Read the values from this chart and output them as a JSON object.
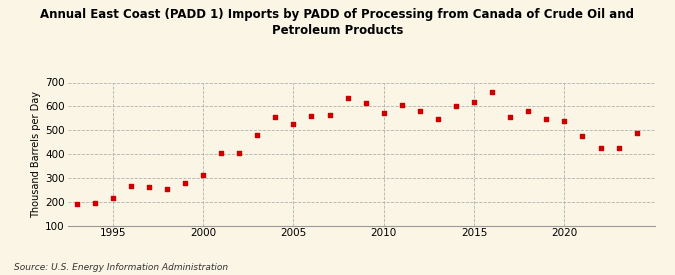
{
  "title": "Annual East Coast (PADD 1) Imports by PADD of Processing from Canada of Crude Oil and\nPetroleum Products",
  "ylabel": "Thousand Barrels per Day",
  "source": "Source: U.S. Energy Information Administration",
  "background_color": "#faf5e4",
  "marker_color": "#cc0000",
  "years": [
    1993,
    1994,
    1995,
    1996,
    1997,
    1998,
    1999,
    2000,
    2001,
    2002,
    2003,
    2004,
    2005,
    2006,
    2007,
    2008,
    2009,
    2010,
    2011,
    2012,
    2013,
    2014,
    2015,
    2016,
    2017,
    2018,
    2019,
    2020,
    2021,
    2022,
    2023,
    2024
  ],
  "values": [
    190,
    193,
    215,
    265,
    260,
    255,
    280,
    310,
    405,
    405,
    480,
    555,
    525,
    560,
    565,
    635,
    615,
    570,
    605,
    580,
    545,
    600,
    620,
    660,
    555,
    580,
    545,
    540,
    475,
    425,
    425,
    490
  ],
  "xlim": [
    1992.5,
    2025
  ],
  "ylim": [
    100,
    700
  ],
  "yticks": [
    100,
    200,
    300,
    400,
    500,
    600,
    700
  ],
  "xticks": [
    1995,
    2000,
    2005,
    2010,
    2015,
    2020
  ],
  "title_fontsize": 8.5,
  "ylabel_fontsize": 7,
  "tick_fontsize": 7.5,
  "source_fontsize": 6.5
}
